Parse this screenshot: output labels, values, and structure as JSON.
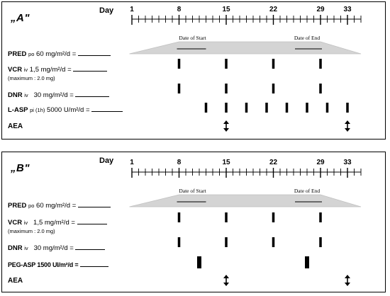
{
  "day_axis": {
    "label": "Day",
    "tick_labels": [
      "1",
      "8",
      "15",
      "22",
      "29",
      "33"
    ]
  },
  "taper": {
    "start_label": "Date of Start",
    "end_label": "Date of End"
  },
  "panels": [
    {
      "letter": "„A\"",
      "rows": {
        "pred": {
          "name": "PRED",
          "route": "po",
          "dose": "60 mg/m²/d ="
        },
        "vcr": {
          "name": "VCR",
          "route": "iv",
          "dose": "1,5 mg/m²/d =",
          "note": "(maximum : 2.0 mg)"
        },
        "dnr": {
          "name": "DNR",
          "route": "iv",
          "dose": "30 mg/m²/d ="
        },
        "asp": {
          "name": "L-ASP",
          "route": "pi (1h)",
          "dose": "5000 U/m²/d ="
        },
        "aea": {
          "name": "AEA"
        }
      },
      "vcr_days": [
        8,
        15,
        22,
        29
      ],
      "dnr_days": [
        8,
        15,
        22,
        29
      ],
      "asp_days": [
        12,
        15,
        18,
        21,
        24,
        27,
        30,
        33
      ],
      "aea_days": [
        15,
        33
      ]
    },
    {
      "letter": "„B\"",
      "rows": {
        "pred": {
          "name": "PRED",
          "route": "po",
          "dose": "60 mg/m²/d ="
        },
        "vcr": {
          "name": "VCR",
          "route": "iv",
          "dose": "1,5 mg/m²/d =",
          "note": "(maximum : 2.0 mg)"
        },
        "dnr": {
          "name": "DNR",
          "route": "iv",
          "dose": "30 mg/m²/d ="
        },
        "asp": {
          "name": "PEG-ASP",
          "route": "",
          "dose": "1500 UI/m²/d ="
        },
        "aea": {
          "name": "AEA"
        }
      },
      "vcr_days": [
        8,
        15,
        22,
        29
      ],
      "dnr_days": [
        8,
        15,
        22,
        29
      ],
      "asp_days": [
        11,
        27
      ],
      "aea_days": [
        15,
        33
      ]
    }
  ]
}
